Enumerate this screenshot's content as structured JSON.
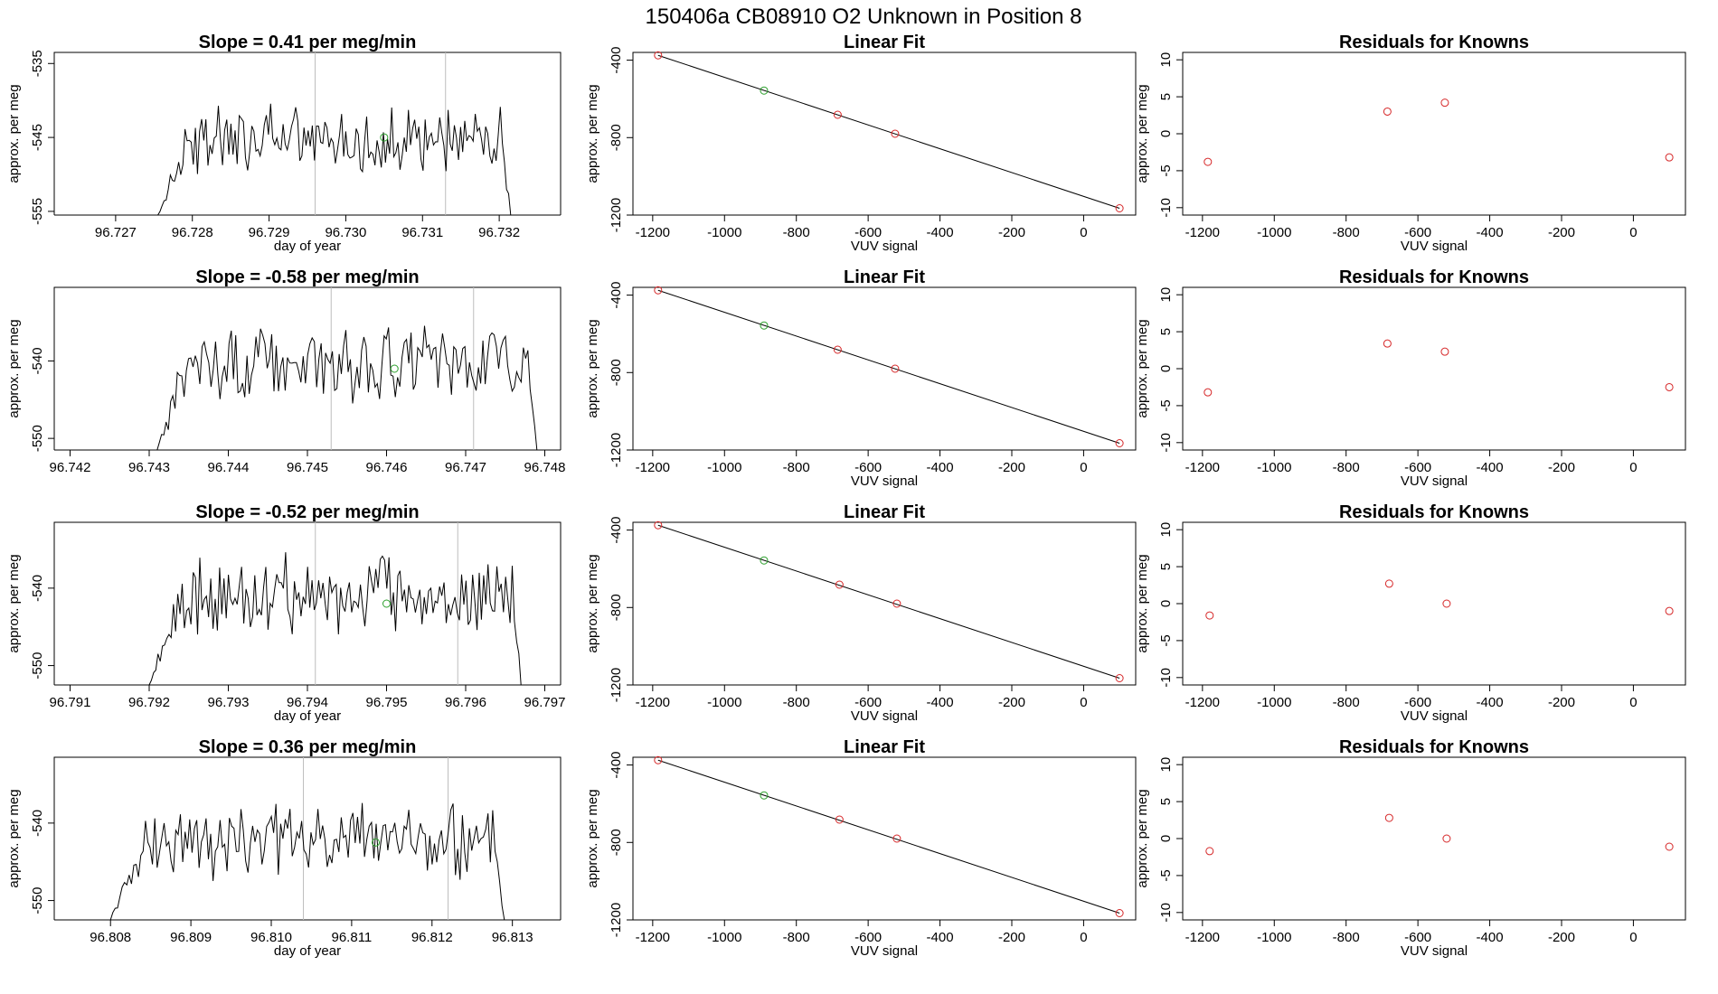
{
  "figure_title": "150406a      CB08910    O2 Unknown in Position  8",
  "colors": {
    "known": "#d62728",
    "unknown": "#2ca02c",
    "line": "#000000",
    "marker": "#bdbdbd"
  },
  "chart_data": [
    {
      "type": "line",
      "title": "Slope =  0.41  per meg/min",
      "xlabel": "day of year",
      "ylabel": "approx. per meg",
      "xlim": [
        96.7262,
        96.7328
      ],
      "ylim": [
        -555.5,
        -533.5
      ],
      "xticks": [
        96.727,
        96.728,
        96.729,
        96.73,
        96.731,
        96.732
      ],
      "xtick_labels": [
        "96.727",
        "96.728",
        "96.729",
        "96.730",
        "96.731",
        "96.732"
      ],
      "yticks": [
        -555,
        -545,
        -535
      ],
      "ytick_labels": [
        "-555",
        "-545",
        "-535"
      ],
      "vlines": [
        96.7296,
        96.7313
      ],
      "trace_range": [
        96.72755,
        96.73215
      ],
      "baseline": -545.5,
      "amplitude": 3.5,
      "unknown_point": {
        "x": 96.7305,
        "y": -545.0
      }
    },
    {
      "type": "scatter",
      "title": "Linear Fit",
      "xlabel": "VUV signal",
      "ylabel": "approx. per meg",
      "xlim": [
        -1255,
        145
      ],
      "ylim": [
        -1200,
        -360
      ],
      "xticks": [
        -1200,
        -1000,
        -800,
        -600,
        -400,
        -200,
        0
      ],
      "xtick_labels": [
        "-1200",
        "-1000",
        "-800",
        "-600",
        "-400",
        "-200",
        "0"
      ],
      "yticks": [
        -1200,
        -800,
        -400
      ],
      "ytick_labels": [
        "-1200",
        "-800",
        "-400"
      ],
      "fit_line": [
        [
          -1185,
          -375
        ],
        [
          100,
          -1165
        ]
      ],
      "known_points": [
        [
          -1185,
          -375
        ],
        [
          -685,
          -682
        ],
        [
          -525,
          -780
        ],
        [
          100,
          -1165
        ]
      ],
      "unknown_points": [
        [
          -890,
          -557
        ]
      ]
    },
    {
      "type": "scatter",
      "title": "Residuals for Knowns",
      "xlabel": "VUV signal",
      "ylabel": "approx. per meg",
      "xlim": [
        -1255,
        145
      ],
      "ylim": [
        -11,
        11
      ],
      "xticks": [
        -1200,
        -1000,
        -800,
        -600,
        -400,
        -200,
        0
      ],
      "xtick_labels": [
        "-1200",
        "-1000",
        "-800",
        "-600",
        "-400",
        "-200",
        "0"
      ],
      "yticks": [
        -10,
        -5,
        0,
        5,
        10
      ],
      "ytick_labels": [
        "-10",
        "-5",
        "0",
        "5",
        "10"
      ],
      "known_points": [
        [
          -1185,
          -3.8
        ],
        [
          -685,
          3.0
        ],
        [
          -525,
          4.2
        ],
        [
          100,
          -3.2
        ]
      ]
    },
    {
      "type": "line",
      "title": "Slope =  -0.58  per meg/min",
      "xlabel": "",
      "ylabel": "approx. per meg",
      "xlim": [
        96.7418,
        96.7482
      ],
      "ylim": [
        -551.5,
        -530.5
      ],
      "xticks": [
        96.742,
        96.743,
        96.744,
        96.745,
        96.746,
        96.747,
        96.748
      ],
      "xtick_labels": [
        "96.742",
        "96.743",
        "96.744",
        "96.745",
        "96.746",
        "96.747",
        "96.748"
      ],
      "yticks": [
        -550,
        -540
      ],
      "ytick_labels": [
        "-550",
        "-540"
      ],
      "vlines": [
        96.7453,
        96.7471
      ],
      "trace_range": [
        96.7431,
        96.7479
      ],
      "baseline": -540.5,
      "amplitude": 4.0,
      "unknown_point": {
        "x": 96.7461,
        "y": -541.0
      }
    },
    {
      "type": "scatter",
      "title": "Linear Fit",
      "xlabel": "VUV signal",
      "ylabel": "approx. per meg",
      "xlim": [
        -1255,
        145
      ],
      "ylim": [
        -1200,
        -360
      ],
      "xticks": [
        -1200,
        -1000,
        -800,
        -600,
        -400,
        -200,
        0
      ],
      "xtick_labels": [
        "-1200",
        "-1000",
        "-800",
        "-600",
        "-400",
        "-200",
        "0"
      ],
      "yticks": [
        -1200,
        -800,
        -400
      ],
      "ytick_labels": [
        "-1200",
        "-800",
        "-400"
      ],
      "fit_line": [
        [
          -1185,
          -375
        ],
        [
          100,
          -1165
        ]
      ],
      "known_points": [
        [
          -1185,
          -375
        ],
        [
          -685,
          -682
        ],
        [
          -525,
          -780
        ],
        [
          100,
          -1165
        ]
      ],
      "unknown_points": [
        [
          -890,
          -557
        ]
      ]
    },
    {
      "type": "scatter",
      "title": "Residuals for Knowns",
      "xlabel": "VUV signal",
      "ylabel": "approx. per meg",
      "xlim": [
        -1255,
        145
      ],
      "ylim": [
        -11,
        11
      ],
      "xticks": [
        -1200,
        -1000,
        -800,
        -600,
        -400,
        -200,
        0
      ],
      "xtick_labels": [
        "-1200",
        "-1000",
        "-800",
        "-600",
        "-400",
        "-200",
        "0"
      ],
      "yticks": [
        -10,
        -5,
        0,
        5,
        10
      ],
      "ytick_labels": [
        "-10",
        "-5",
        "0",
        "5",
        "10"
      ],
      "known_points": [
        [
          -1185,
          -3.2
        ],
        [
          -685,
          3.4
        ],
        [
          -525,
          2.3
        ],
        [
          100,
          -2.5
        ]
      ]
    },
    {
      "type": "line",
      "title": "Slope =  -0.52  per meg/min",
      "xlabel": "day of year",
      "ylabel": "approx. per meg",
      "xlim": [
        96.7908,
        96.7972
      ],
      "ylim": [
        -552.5,
        -531.5
      ],
      "xticks": [
        96.791,
        96.792,
        96.793,
        96.794,
        96.795,
        96.796,
        96.797
      ],
      "xtick_labels": [
        "96.791",
        "96.792",
        "96.793",
        "96.794",
        "96.795",
        "96.796",
        "96.797"
      ],
      "yticks": [
        -550,
        -540
      ],
      "ytick_labels": [
        "-550",
        "-540"
      ],
      "vlines": [
        96.7941,
        96.7959
      ],
      "trace_range": [
        96.792,
        96.7967
      ],
      "baseline": -541.0,
      "amplitude": 3.8,
      "unknown_point": {
        "x": 96.795,
        "y": -542.0
      }
    },
    {
      "type": "scatter",
      "title": "Linear Fit",
      "xlabel": "VUV signal",
      "ylabel": "approx. per meg",
      "xlim": [
        -1255,
        145
      ],
      "ylim": [
        -1200,
        -360
      ],
      "xticks": [
        -1200,
        -1000,
        -800,
        -600,
        -400,
        -200,
        0
      ],
      "xtick_labels": [
        "-1200",
        "-1000",
        "-800",
        "-600",
        "-400",
        "-200",
        "0"
      ],
      "yticks": [
        -1200,
        -800,
        -400
      ],
      "ytick_labels": [
        "-1200",
        "-800",
        "-400"
      ],
      "fit_line": [
        [
          -1185,
          -375
        ],
        [
          100,
          -1165
        ]
      ],
      "known_points": [
        [
          -1185,
          -375
        ],
        [
          -680,
          -682
        ],
        [
          -520,
          -780
        ],
        [
          100,
          -1165
        ]
      ],
      "unknown_points": [
        [
          -890,
          -557
        ]
      ]
    },
    {
      "type": "scatter",
      "title": "Residuals for Knowns",
      "xlabel": "VUV signal",
      "ylabel": "approx. per meg",
      "xlim": [
        -1255,
        145
      ],
      "ylim": [
        -11,
        11
      ],
      "xticks": [
        -1200,
        -1000,
        -800,
        -600,
        -400,
        -200,
        0
      ],
      "xtick_labels": [
        "-1200",
        "-1000",
        "-800",
        "-600",
        "-400",
        "-200",
        "0"
      ],
      "yticks": [
        -10,
        -5,
        0,
        5,
        10
      ],
      "ytick_labels": [
        "-10",
        "-5",
        "0",
        "5",
        "10"
      ],
      "known_points": [
        [
          -1180,
          -1.6
        ],
        [
          -680,
          2.7
        ],
        [
          -520,
          0.0
        ],
        [
          100,
          -1.0
        ]
      ]
    },
    {
      "type": "line",
      "title": "Slope =  0.36  per meg/min",
      "xlabel": "day of year",
      "ylabel": "approx. per meg",
      "xlim": [
        96.8073,
        96.8136
      ],
      "ylim": [
        -552.5,
        -531.5
      ],
      "xticks": [
        96.808,
        96.809,
        96.81,
        96.811,
        96.812,
        96.813
      ],
      "xtick_labels": [
        "96.808",
        "96.809",
        "96.810",
        "96.811",
        "96.812",
        "96.813"
      ],
      "yticks": [
        -550,
        -540
      ],
      "ytick_labels": [
        "-550",
        "-540"
      ],
      "vlines": [
        96.8104,
        96.8122
      ],
      "trace_range": [
        96.808,
        96.8129
      ],
      "baseline": -542.0,
      "amplitude": 3.8,
      "unknown_point": {
        "x": 96.8113,
        "y": -542.5
      }
    },
    {
      "type": "scatter",
      "title": "Linear Fit",
      "xlabel": "VUV signal",
      "ylabel": "approx. per meg",
      "xlim": [
        -1255,
        145
      ],
      "ylim": [
        -1200,
        -360
      ],
      "xticks": [
        -1200,
        -1000,
        -800,
        -600,
        -400,
        -200,
        0
      ],
      "xtick_labels": [
        "-1200",
        "-1000",
        "-800",
        "-600",
        "-400",
        "-200",
        "0"
      ],
      "yticks": [
        -1200,
        -800,
        -400
      ],
      "ytick_labels": [
        "-1200",
        "-800",
        "-400"
      ],
      "fit_line": [
        [
          -1185,
          -375
        ],
        [
          100,
          -1165
        ]
      ],
      "known_points": [
        [
          -1185,
          -375
        ],
        [
          -680,
          -682
        ],
        [
          -520,
          -780
        ],
        [
          100,
          -1165
        ]
      ],
      "unknown_points": [
        [
          -890,
          -557
        ]
      ]
    },
    {
      "type": "scatter",
      "title": "Residuals for Knowns",
      "xlabel": "VUV signal",
      "ylabel": "approx. per meg",
      "xlim": [
        -1255,
        145
      ],
      "ylim": [
        -11,
        11
      ],
      "xticks": [
        -1200,
        -1000,
        -800,
        -600,
        -400,
        -200,
        0
      ],
      "xtick_labels": [
        "-1200",
        "-1000",
        "-800",
        "-600",
        "-400",
        "-200",
        "0"
      ],
      "yticks": [
        -10,
        -5,
        0,
        5,
        10
      ],
      "ytick_labels": [
        "-10",
        "-5",
        "0",
        "5",
        "10"
      ],
      "known_points": [
        [
          -1180,
          -1.7
        ],
        [
          -680,
          2.8
        ],
        [
          -520,
          0.0
        ],
        [
          100,
          -1.1
        ]
      ]
    }
  ]
}
